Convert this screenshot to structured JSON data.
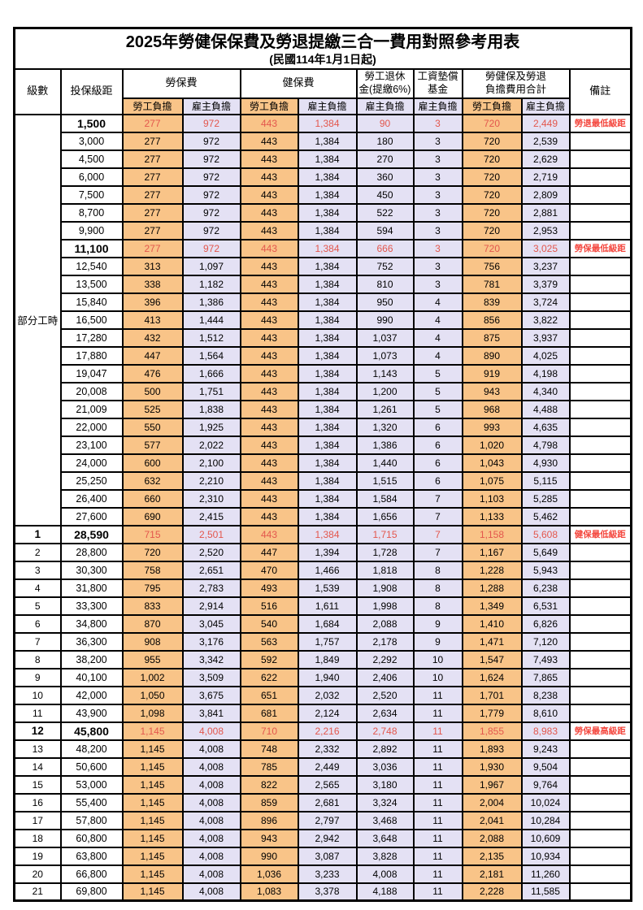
{
  "title": "2025年勞健保保費及勞退提繳三合一費用對照參考用表",
  "subtitle": "(民國114年1月1日起)",
  "header": {
    "level": "級數",
    "bracket": "投保級距",
    "labor_ins": "勞保費",
    "health_ins": "健保費",
    "pension_l1": "勞工退休",
    "pension_l2": "金(提繳6%)",
    "wage_fund_l1": "工資墊償",
    "wage_fund_l2": "基金",
    "total_l1": "勞健保及勞退",
    "total_l2": "負擔費用合計",
    "remark": "備註",
    "sub": [
      "勞工負擔",
      "雇主負擔",
      "勞工負擔",
      "雇主負擔",
      "雇主負擔",
      "雇主負擔",
      "勞工負擔",
      "雇主負擔"
    ]
  },
  "part_time_label": "部分工時",
  "part_time_span": 23,
  "colors": {
    "employee_bg": "#f9c488",
    "employer_bg": "#e4e1f4",
    "value_red": "#e3574d",
    "remark_red": "#f4473e"
  },
  "rows": [
    {
      "level": "",
      "bracket": "1,500",
      "v": [
        "277",
        "972",
        "443",
        "1,384",
        "90",
        "3",
        "720",
        "2,449"
      ],
      "remark": "勞退最低級距",
      "hl": true
    },
    {
      "level": "",
      "bracket": "3,000",
      "v": [
        "277",
        "972",
        "443",
        "1,384",
        "180",
        "3",
        "720",
        "2,539"
      ],
      "remark": "",
      "hl": false
    },
    {
      "level": "",
      "bracket": "4,500",
      "v": [
        "277",
        "972",
        "443",
        "1,384",
        "270",
        "3",
        "720",
        "2,629"
      ],
      "remark": "",
      "hl": false
    },
    {
      "level": "",
      "bracket": "6,000",
      "v": [
        "277",
        "972",
        "443",
        "1,384",
        "360",
        "3",
        "720",
        "2,719"
      ],
      "remark": "",
      "hl": false
    },
    {
      "level": "",
      "bracket": "7,500",
      "v": [
        "277",
        "972",
        "443",
        "1,384",
        "450",
        "3",
        "720",
        "2,809"
      ],
      "remark": "",
      "hl": false
    },
    {
      "level": "",
      "bracket": "8,700",
      "v": [
        "277",
        "972",
        "443",
        "1,384",
        "522",
        "3",
        "720",
        "2,881"
      ],
      "remark": "",
      "hl": false
    },
    {
      "level": "",
      "bracket": "9,900",
      "v": [
        "277",
        "972",
        "443",
        "1,384",
        "594",
        "3",
        "720",
        "2,953"
      ],
      "remark": "",
      "hl": false
    },
    {
      "level": "",
      "bracket": "11,100",
      "v": [
        "277",
        "972",
        "443",
        "1,384",
        "666",
        "3",
        "720",
        "3,025"
      ],
      "remark": "勞保最低級距",
      "hl": true
    },
    {
      "level": "",
      "bracket": "12,540",
      "v": [
        "313",
        "1,097",
        "443",
        "1,384",
        "752",
        "3",
        "756",
        "3,237"
      ],
      "remark": "",
      "hl": false
    },
    {
      "level": "",
      "bracket": "13,500",
      "v": [
        "338",
        "1,182",
        "443",
        "1,384",
        "810",
        "3",
        "781",
        "3,379"
      ],
      "remark": "",
      "hl": false
    },
    {
      "level": "",
      "bracket": "15,840",
      "v": [
        "396",
        "1,386",
        "443",
        "1,384",
        "950",
        "4",
        "839",
        "3,724"
      ],
      "remark": "",
      "hl": false
    },
    {
      "level": "",
      "bracket": "16,500",
      "v": [
        "413",
        "1,444",
        "443",
        "1,384",
        "990",
        "4",
        "856",
        "3,822"
      ],
      "remark": "",
      "hl": false
    },
    {
      "level": "",
      "bracket": "17,280",
      "v": [
        "432",
        "1,512",
        "443",
        "1,384",
        "1,037",
        "4",
        "875",
        "3,937"
      ],
      "remark": "",
      "hl": false
    },
    {
      "level": "",
      "bracket": "17,880",
      "v": [
        "447",
        "1,564",
        "443",
        "1,384",
        "1,073",
        "4",
        "890",
        "4,025"
      ],
      "remark": "",
      "hl": false
    },
    {
      "level": "",
      "bracket": "19,047",
      "v": [
        "476",
        "1,666",
        "443",
        "1,384",
        "1,143",
        "5",
        "919",
        "4,198"
      ],
      "remark": "",
      "hl": false
    },
    {
      "level": "",
      "bracket": "20,008",
      "v": [
        "500",
        "1,751",
        "443",
        "1,384",
        "1,200",
        "5",
        "943",
        "4,340"
      ],
      "remark": "",
      "hl": false
    },
    {
      "level": "",
      "bracket": "21,009",
      "v": [
        "525",
        "1,838",
        "443",
        "1,384",
        "1,261",
        "5",
        "968",
        "4,488"
      ],
      "remark": "",
      "hl": false
    },
    {
      "level": "",
      "bracket": "22,000",
      "v": [
        "550",
        "1,925",
        "443",
        "1,384",
        "1,320",
        "6",
        "993",
        "4,635"
      ],
      "remark": "",
      "hl": false
    },
    {
      "level": "",
      "bracket": "23,100",
      "v": [
        "577",
        "2,022",
        "443",
        "1,384",
        "1,386",
        "6",
        "1,020",
        "4,798"
      ],
      "remark": "",
      "hl": false
    },
    {
      "level": "",
      "bracket": "24,000",
      "v": [
        "600",
        "2,100",
        "443",
        "1,384",
        "1,440",
        "6",
        "1,043",
        "4,930"
      ],
      "remark": "",
      "hl": false
    },
    {
      "level": "",
      "bracket": "25,250",
      "v": [
        "632",
        "2,210",
        "443",
        "1,384",
        "1,515",
        "6",
        "1,075",
        "5,115"
      ],
      "remark": "",
      "hl": false
    },
    {
      "level": "",
      "bracket": "26,400",
      "v": [
        "660",
        "2,310",
        "443",
        "1,384",
        "1,584",
        "7",
        "1,103",
        "5,285"
      ],
      "remark": "",
      "hl": false
    },
    {
      "level": "",
      "bracket": "27,600",
      "v": [
        "690",
        "2,415",
        "443",
        "1,384",
        "1,656",
        "7",
        "1,133",
        "5,462"
      ],
      "remark": "",
      "hl": false
    },
    {
      "level": "1",
      "bracket": "28,590",
      "v": [
        "715",
        "2,501",
        "443",
        "1,384",
        "1,715",
        "7",
        "1,158",
        "5,608"
      ],
      "remark": "健保最低級距",
      "hl": true
    },
    {
      "level": "2",
      "bracket": "28,800",
      "v": [
        "720",
        "2,520",
        "447",
        "1,394",
        "1,728",
        "7",
        "1,167",
        "5,649"
      ],
      "remark": "",
      "hl": false
    },
    {
      "level": "3",
      "bracket": "30,300",
      "v": [
        "758",
        "2,651",
        "470",
        "1,466",
        "1,818",
        "8",
        "1,228",
        "5,943"
      ],
      "remark": "",
      "hl": false
    },
    {
      "level": "4",
      "bracket": "31,800",
      "v": [
        "795",
        "2,783",
        "493",
        "1,539",
        "1,908",
        "8",
        "1,288",
        "6,238"
      ],
      "remark": "",
      "hl": false
    },
    {
      "level": "5",
      "bracket": "33,300",
      "v": [
        "833",
        "2,914",
        "516",
        "1,611",
        "1,998",
        "8",
        "1,349",
        "6,531"
      ],
      "remark": "",
      "hl": false
    },
    {
      "level": "6",
      "bracket": "34,800",
      "v": [
        "870",
        "3,045",
        "540",
        "1,684",
        "2,088",
        "9",
        "1,410",
        "6,826"
      ],
      "remark": "",
      "hl": false
    },
    {
      "level": "7",
      "bracket": "36,300",
      "v": [
        "908",
        "3,176",
        "563",
        "1,757",
        "2,178",
        "9",
        "1,471",
        "7,120"
      ],
      "remark": "",
      "hl": false
    },
    {
      "level": "8",
      "bracket": "38,200",
      "v": [
        "955",
        "3,342",
        "592",
        "1,849",
        "2,292",
        "10",
        "1,547",
        "7,493"
      ],
      "remark": "",
      "hl": false
    },
    {
      "level": "9",
      "bracket": "40,100",
      "v": [
        "1,002",
        "3,509",
        "622",
        "1,940",
        "2,406",
        "10",
        "1,624",
        "7,865"
      ],
      "remark": "",
      "hl": false
    },
    {
      "level": "10",
      "bracket": "42,000",
      "v": [
        "1,050",
        "3,675",
        "651",
        "2,032",
        "2,520",
        "11",
        "1,701",
        "8,238"
      ],
      "remark": "",
      "hl": false
    },
    {
      "level": "11",
      "bracket": "43,900",
      "v": [
        "1,098",
        "3,841",
        "681",
        "2,124",
        "2,634",
        "11",
        "1,779",
        "8,610"
      ],
      "remark": "",
      "hl": false
    },
    {
      "level": "12",
      "bracket": "45,800",
      "v": [
        "1,145",
        "4,008",
        "710",
        "2,216",
        "2,748",
        "11",
        "1,855",
        "8,983"
      ],
      "remark": "勞保最高級距",
      "hl": true
    },
    {
      "level": "13",
      "bracket": "48,200",
      "v": [
        "1,145",
        "4,008",
        "748",
        "2,332",
        "2,892",
        "11",
        "1,893",
        "9,243"
      ],
      "remark": "",
      "hl": false
    },
    {
      "level": "14",
      "bracket": "50,600",
      "v": [
        "1,145",
        "4,008",
        "785",
        "2,449",
        "3,036",
        "11",
        "1,930",
        "9,504"
      ],
      "remark": "",
      "hl": false
    },
    {
      "level": "15",
      "bracket": "53,000",
      "v": [
        "1,145",
        "4,008",
        "822",
        "2,565",
        "3,180",
        "11",
        "1,967",
        "9,764"
      ],
      "remark": "",
      "hl": false
    },
    {
      "level": "16",
      "bracket": "55,400",
      "v": [
        "1,145",
        "4,008",
        "859",
        "2,681",
        "3,324",
        "11",
        "2,004",
        "10,024"
      ],
      "remark": "",
      "hl": false
    },
    {
      "level": "17",
      "bracket": "57,800",
      "v": [
        "1,145",
        "4,008",
        "896",
        "2,797",
        "3,468",
        "11",
        "2,041",
        "10,284"
      ],
      "remark": "",
      "hl": false
    },
    {
      "level": "18",
      "bracket": "60,800",
      "v": [
        "1,145",
        "4,008",
        "943",
        "2,942",
        "3,648",
        "11",
        "2,088",
        "10,609"
      ],
      "remark": "",
      "hl": false
    },
    {
      "level": "19",
      "bracket": "63,800",
      "v": [
        "1,145",
        "4,008",
        "990",
        "3,087",
        "3,828",
        "11",
        "2,135",
        "10,934"
      ],
      "remark": "",
      "hl": false
    },
    {
      "level": "20",
      "bracket": "66,800",
      "v": [
        "1,145",
        "4,008",
        "1,036",
        "3,233",
        "4,008",
        "11",
        "2,181",
        "11,260"
      ],
      "remark": "",
      "hl": false
    },
    {
      "level": "21",
      "bracket": "69,800",
      "v": [
        "1,145",
        "4,008",
        "1,083",
        "3,378",
        "4,188",
        "11",
        "2,228",
        "11,585"
      ],
      "remark": "",
      "hl": false
    }
  ]
}
